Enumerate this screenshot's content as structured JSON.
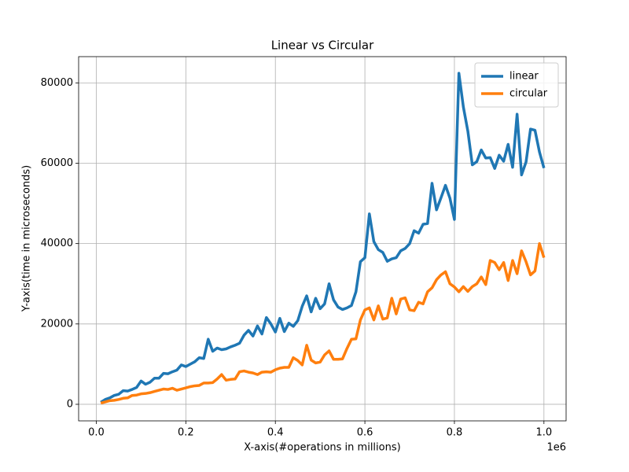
{
  "chart_data": {
    "type": "line",
    "title": "Linear vs Circular",
    "x_label": "X-axis(#operations in millions)",
    "y_label": "Y-axis(time in microseconds)",
    "x_offset_label": "1e6",
    "x": [
      10000,
      20000,
      30000,
      40000,
      50000,
      60000,
      70000,
      80000,
      90000,
      100000,
      110000,
      120000,
      130000,
      140000,
      150000,
      160000,
      170000,
      180000,
      190000,
      200000,
      210000,
      220000,
      230000,
      240000,
      250000,
      260000,
      270000,
      280000,
      290000,
      300000,
      310000,
      320000,
      330000,
      340000,
      350000,
      360000,
      370000,
      380000,
      390000,
      400000,
      410000,
      420000,
      430000,
      440000,
      450000,
      460000,
      470000,
      480000,
      490000,
      500000,
      510000,
      520000,
      530000,
      540000,
      550000,
      560000,
      570000,
      580000,
      590000,
      600000,
      610000,
      620000,
      630000,
      640000,
      650000,
      660000,
      670000,
      680000,
      690000,
      700000,
      710000,
      720000,
      730000,
      740000,
      750000,
      760000,
      770000,
      780000,
      790000,
      800000,
      810000,
      820000,
      830000,
      840000,
      850000,
      860000,
      870000,
      880000,
      890000,
      900000,
      910000,
      920000,
      930000,
      940000,
      950000,
      960000,
      970000,
      980000,
      990000,
      1000000
    ],
    "series": [
      {
        "name": "linear",
        "color": "#1f77b4",
        "values": [
          500,
          1200,
          1600,
          2200,
          2500,
          3400,
          3300,
          3700,
          4200,
          5800,
          5000,
          5500,
          6500,
          6500,
          7700,
          7600,
          8100,
          8500,
          9800,
          9400,
          10000,
          10600,
          11600,
          11400,
          16200,
          13200,
          14000,
          13600,
          13800,
          14300,
          14700,
          15200,
          17200,
          18400,
          17000,
          19500,
          17500,
          21600,
          20000,
          18000,
          21400,
          18100,
          20200,
          19400,
          20800,
          24400,
          27000,
          23000,
          26400,
          23800,
          25000,
          30000,
          26000,
          24200,
          23600,
          24000,
          24600,
          28000,
          35500,
          36500,
          47400,
          40500,
          38500,
          37800,
          35600,
          36200,
          36500,
          38200,
          38800,
          40000,
          43200,
          42600,
          44800,
          45000,
          55000,
          48400,
          51400,
          54500,
          51300,
          46000,
          82400,
          74000,
          68000,
          59600,
          60400,
          63300,
          61300,
          61400,
          58700,
          62000,
          60500,
          64700,
          59000,
          72200,
          57100,
          60300,
          68500,
          68200,
          62800,
          58800
        ]
      },
      {
        "name": "circular",
        "color": "#ff7f0e",
        "values": [
          300,
          600,
          900,
          1000,
          1200,
          1500,
          1600,
          2200,
          2300,
          2600,
          2700,
          2900,
          3200,
          3500,
          3800,
          3700,
          4000,
          3500,
          3800,
          4100,
          4400,
          4600,
          4700,
          5300,
          5300,
          5400,
          6300,
          7400,
          6000,
          6200,
          6300,
          8100,
          8300,
          8000,
          7800,
          7400,
          8000,
          8100,
          8000,
          8600,
          9000,
          9200,
          9200,
          11600,
          10900,
          9800,
          14700,
          11000,
          10300,
          10500,
          12300,
          13300,
          11200,
          11200,
          11300,
          13900,
          16200,
          16300,
          21000,
          23500,
          24000,
          21000,
          24500,
          21200,
          21500,
          26400,
          22500,
          26200,
          26500,
          23500,
          23300,
          25400,
          25000,
          28000,
          29000,
          31000,
          32200,
          33000,
          30000,
          29200,
          28000,
          29300,
          28100,
          29300,
          30000,
          31700,
          29800,
          35800,
          35300,
          33500,
          35300,
          30800,
          35800,
          32500,
          38200,
          35500,
          32200,
          33200,
          40000,
          36500
        ]
      }
    ],
    "xlim": [
      -39500,
      1049500
    ],
    "xticks": [
      {
        "value": 0,
        "label": "0.0"
      },
      {
        "value": 200000,
        "label": "0.2"
      },
      {
        "value": 400000,
        "label": "0.4"
      },
      {
        "value": 600000,
        "label": "0.6"
      },
      {
        "value": 800000,
        "label": "0.8"
      },
      {
        "value": 1000000,
        "label": "1.0"
      }
    ],
    "ylim": [
      -4120,
      86530
    ],
    "yticks": [
      0,
      20000,
      40000,
      60000,
      80000
    ],
    "grid": true,
    "legend": "upper right"
  }
}
